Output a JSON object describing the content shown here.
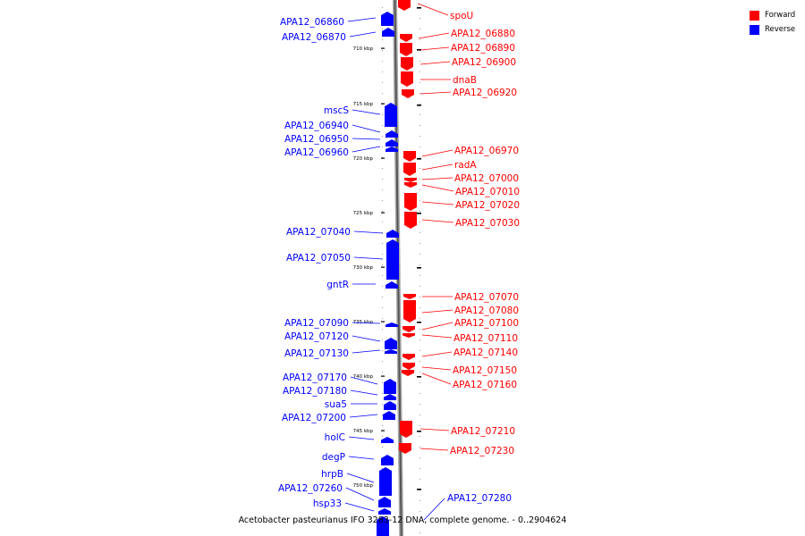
{
  "legend": {
    "forward_label": "Forward",
    "reverse_label": "Reverse",
    "forward_color": "#ff0000",
    "reverse_color": "#0000ff"
  },
  "caption": "Acetobacter pasteurianus IFO 3283-12 DNA, complete genome. - 0..2904624",
  "ticks": [
    "710 kbp",
    "715 kbp",
    "720 kbp",
    "725 kbp",
    "730 kbp",
    "735 kbp",
    "740 kbp",
    "745 kbp",
    "750 kbp"
  ],
  "genes_reverse": [
    "APA12_06860",
    "APA12_06870",
    "mscS",
    "APA12_06940",
    "APA12_06950",
    "APA12_06960",
    "APA12_07040",
    "APA12_07050",
    "gntR",
    "APA12_07090",
    "APA12_07120",
    "APA12_07130",
    "APA12_07170",
    "APA12_07180",
    "sua5",
    "APA12_07200",
    "holC",
    "degP",
    "hrpB",
    "APA12_07260",
    "hsp33",
    "APA12_07280"
  ],
  "genes_forward": [
    "spoU",
    "APA12_06880",
    "APA12_06890",
    "APA12_06900",
    "dnaB",
    "APA12_06920",
    "APA12_06970",
    "radA",
    "APA12_07000",
    "APA12_07010",
    "APA12_07020",
    "APA12_07030",
    "APA12_07070",
    "APA12_07080",
    "APA12_07100",
    "APA12_07110",
    "APA12_07140",
    "APA12_07150",
    "APA12_07160",
    "APA12_07210",
    "APA12_07230"
  ]
}
